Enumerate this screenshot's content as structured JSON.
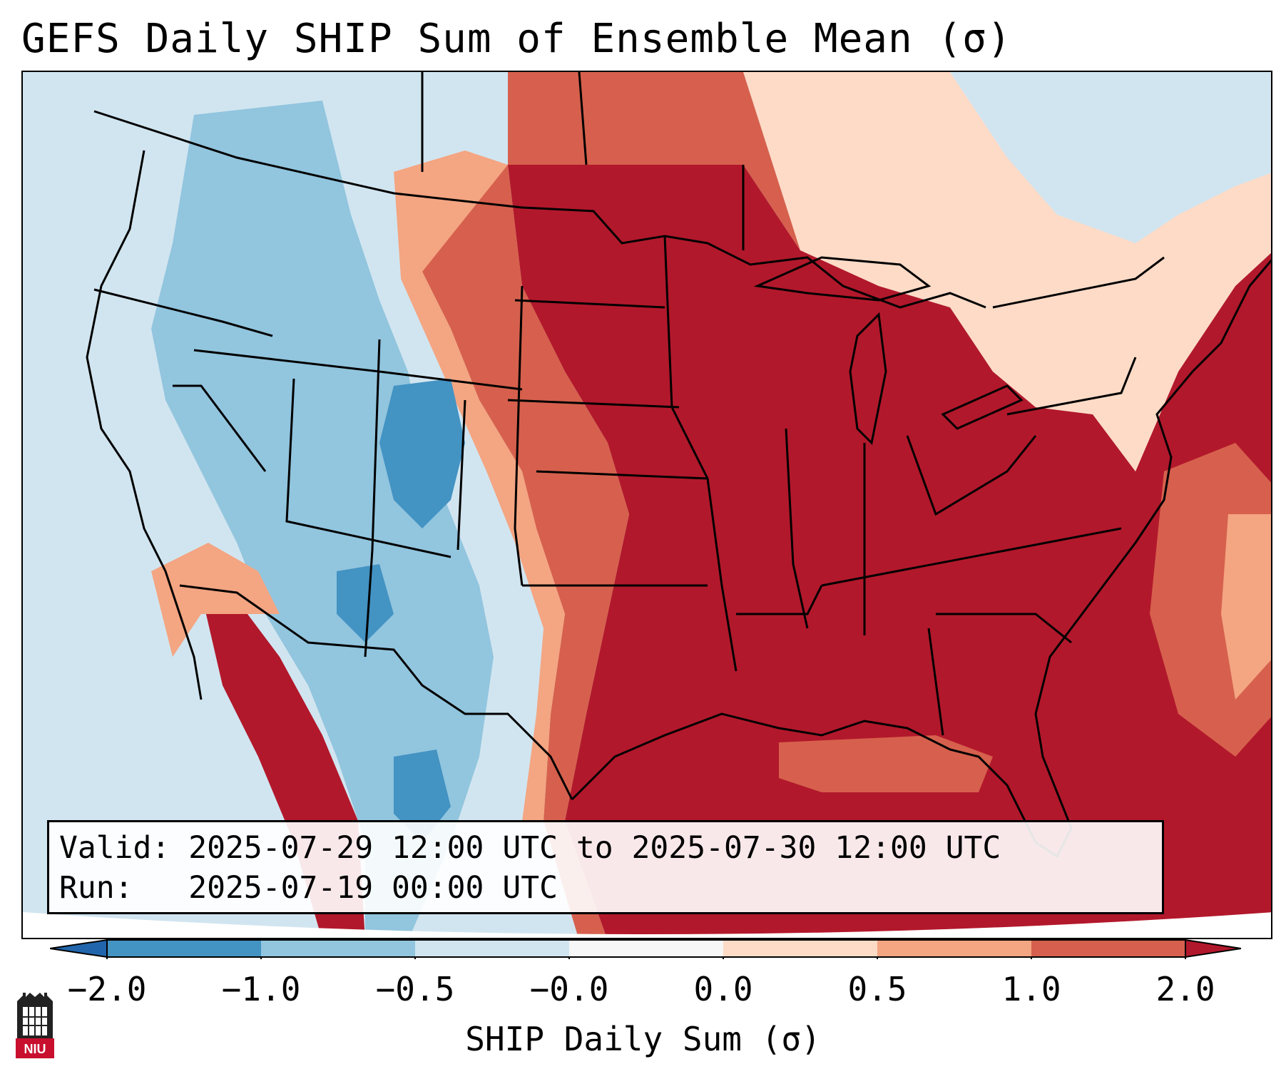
{
  "title": "GEFS Daily SHIP Sum of Ensemble Mean (σ)",
  "info": {
    "valid_line": "Valid: 2025-07-29 12:00 UTC to 2025-07-30 12:00 UTC",
    "run_line": "Run:   2025-07-19 00:00 UTC"
  },
  "colorbar": {
    "label": "SHIP Daily Sum (σ)",
    "ticks": [
      "−2.0",
      "−1.0",
      "−0.5",
      "−0.0",
      "0.0",
      "0.5",
      "1.0",
      "2.0"
    ],
    "colors": [
      "#4393c3",
      "#92c5de",
      "#d1e5f0",
      "#f7f7f7",
      "#fddbc7",
      "#f4a582",
      "#d6604d",
      "#b2182b"
    ],
    "extend_low_color": "#2166ac",
    "extend_high_color": "#b2182b"
  },
  "map": {
    "projection": "Lambert conformal (CONUS)",
    "ocean_color": "#d1e5f0",
    "region_colors": {
      "pacific_northwest": "#d1e5f0",
      "great_basin_rockies": "#92c5de",
      "four_corners_core": "#4393c3",
      "southern_plains_texas": "#92c5de",
      "northern_plains_edge": "#d6604d",
      "central_eastern_us": "#b2182b",
      "northeast_canada": "#fddbc7",
      "gulf_atlantic": "#b2182b"
    }
  },
  "logo": {
    "text": "NIU",
    "icon": "niu-logo-icon"
  }
}
